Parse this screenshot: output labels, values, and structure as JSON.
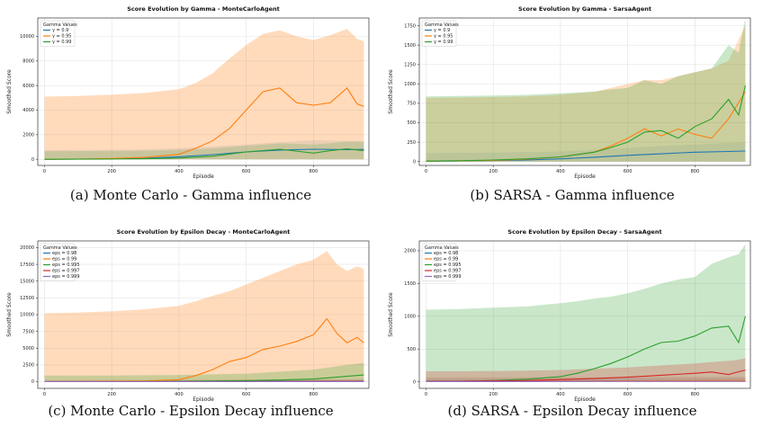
{
  "figure": {
    "captions": [
      "(a) Monte Carlo - Gamma influence",
      "(b) SARSA - Gamma influence",
      "(c) Monte Carlo - Epsilon Decay influence",
      "(d) SARSA - Epsilon Decay influence"
    ]
  },
  "chart_data": [
    {
      "type": "line",
      "title": "Score Evolution by Gamma - MonteCarloAgent",
      "xlabel": "Episode",
      "ylabel": "Smoothed Score",
      "xlim": [
        -20,
        965
      ],
      "ylim": [
        -500,
        11500
      ],
      "xticks": [
        0,
        200,
        400,
        600,
        800
      ],
      "yticks": [
        0,
        2000,
        4000,
        6000,
        8000,
        10000
      ],
      "legend_title": "Gamma Values",
      "legend_position": "top-left",
      "grid": true,
      "series": [
        {
          "name": "γ = 0.9",
          "color": "#1f77b4",
          "x": [
            0,
            100,
            200,
            300,
            400,
            500,
            600,
            700,
            800,
            900,
            950
          ],
          "values": [
            0,
            10,
            40,
            80,
            200,
            380,
            600,
            750,
            820,
            780,
            800
          ],
          "band_lower": [
            0,
            0,
            0,
            0,
            0,
            0,
            0,
            0,
            0,
            0,
            0
          ],
          "band_upper": [
            750,
            760,
            780,
            820,
            900,
            1050,
            1200,
            1400,
            1550,
            1500,
            1500
          ],
          "band_opacity": 0.12
        },
        {
          "name": "γ = 0.95",
          "color": "#ff7f0e",
          "x": [
            0,
            100,
            200,
            300,
            400,
            450,
            500,
            550,
            600,
            650,
            700,
            750,
            800,
            850,
            900,
            930,
            950
          ],
          "values": [
            0,
            20,
            60,
            150,
            400,
            900,
            1500,
            2500,
            4000,
            5500,
            5800,
            4600,
            4400,
            4600,
            5800,
            4500,
            4300
          ],
          "band_lower": [
            0,
            0,
            0,
            0,
            0,
            0,
            0,
            0,
            0,
            0,
            0,
            0,
            0,
            0,
            0,
            0,
            0
          ],
          "band_upper": [
            5100,
            5150,
            5250,
            5400,
            5700,
            6200,
            7000,
            8200,
            9300,
            10200,
            10500,
            10000,
            9700,
            10100,
            10600,
            9800,
            9600
          ],
          "band_opacity": 0.28
        },
        {
          "name": "γ = 0.99",
          "color": "#2ca02c",
          "x": [
            0,
            100,
            200,
            300,
            400,
            500,
            600,
            700,
            800,
            850,
            900,
            950
          ],
          "values": [
            0,
            5,
            20,
            40,
            100,
            250,
            600,
            820,
            500,
            700,
            850,
            700
          ],
          "band_lower": [
            0,
            0,
            0,
            0,
            0,
            0,
            0,
            0,
            0,
            0,
            0,
            0
          ],
          "band_upper": [
            650,
            660,
            680,
            700,
            760,
            880,
            1100,
            1300,
            1200,
            1300,
            1450,
            1400
          ],
          "band_opacity": 0.18
        }
      ]
    },
    {
      "type": "line",
      "title": "Score Evolution by Gamma - SarsaAgent",
      "xlabel": "Episode",
      "ylabel": "Smoothed Score",
      "xlim": [
        -20,
        965
      ],
      "ylim": [
        -50,
        1850
      ],
      "xticks": [
        0,
        200,
        400,
        600,
        800
      ],
      "yticks": [
        0,
        250,
        500,
        750,
        1000,
        1250,
        1500,
        1750
      ],
      "legend_title": "Gamma Values",
      "legend_position": "top-left",
      "grid": true,
      "series": [
        {
          "name": "γ = 0.9",
          "color": "#1f77b4",
          "x": [
            0,
            100,
            200,
            300,
            400,
            500,
            600,
            700,
            800,
            900,
            950
          ],
          "values": [
            5,
            8,
            12,
            20,
            35,
            55,
            80,
            100,
            120,
            130,
            135
          ],
          "band_lower": [
            0,
            0,
            0,
            0,
            0,
            0,
            0,
            0,
            0,
            0,
            0
          ],
          "band_upper": [
            110,
            112,
            115,
            120,
            130,
            150,
            175,
            200,
            220,
            240,
            250
          ],
          "band_opacity": 0.12
        },
        {
          "name": "γ = 0.95",
          "color": "#ff7f0e",
          "x": [
            0,
            100,
            200,
            300,
            400,
            500,
            550,
            600,
            650,
            700,
            750,
            800,
            850,
            900,
            950
          ],
          "values": [
            5,
            10,
            15,
            30,
            60,
            120,
            200,
            300,
            420,
            330,
            420,
            350,
            300,
            550,
            900
          ],
          "band_lower": [
            0,
            0,
            0,
            0,
            0,
            0,
            0,
            0,
            0,
            0,
            0,
            0,
            0,
            0,
            0
          ],
          "band_upper": [
            820,
            825,
            830,
            840,
            860,
            900,
            950,
            1000,
            1050,
            1050,
            1100,
            1150,
            1200,
            1300,
            1750
          ],
          "band_opacity": 0.25
        },
        {
          "name": "γ = 0.99",
          "color": "#2ca02c",
          "x": [
            0,
            100,
            200,
            300,
            400,
            500,
            550,
            600,
            650,
            700,
            750,
            800,
            850,
            900,
            930,
            950
          ],
          "values": [
            5,
            10,
            20,
            35,
            60,
            120,
            180,
            250,
            380,
            400,
            300,
            450,
            550,
            800,
            600,
            980
          ],
          "band_lower": [
            0,
            0,
            0,
            0,
            0,
            0,
            0,
            0,
            0,
            0,
            0,
            0,
            0,
            0,
            0,
            0
          ],
          "band_upper": [
            840,
            845,
            850,
            860,
            880,
            900,
            930,
            950,
            1050,
            1000,
            1100,
            1150,
            1200,
            1500,
            1400,
            1850
          ],
          "band_opacity": 0.25
        }
      ]
    },
    {
      "type": "line",
      "title": "Score Evolution by Epsilon Decay - MonteCarloAgent",
      "xlabel": "Episode",
      "ylabel": "Smoothed Score",
      "xlim": [
        -20,
        965
      ],
      "ylim": [
        -1000,
        21000
      ],
      "xticks": [
        0,
        200,
        400,
        600,
        800
      ],
      "yticks": [
        0,
        2500,
        5000,
        7500,
        10000,
        12500,
        15000,
        17500,
        20000
      ],
      "legend_title": "Gamma Values",
      "legend_position": "top-left",
      "grid": true,
      "series": [
        {
          "name": "eps = 0.98",
          "color": "#1f77b4",
          "x": [
            0,
            300,
            600,
            950
          ],
          "values": [
            0,
            10,
            30,
            50
          ],
          "band_lower": [
            0,
            0,
            0,
            0
          ],
          "band_upper": [
            200,
            220,
            300,
            400
          ],
          "band_opacity": 0.12
        },
        {
          "name": "eps = 0.99",
          "color": "#ff7f0e",
          "x": [
            0,
            100,
            200,
            300,
            400,
            450,
            500,
            550,
            600,
            650,
            700,
            750,
            800,
            840,
            870,
            900,
            930,
            950
          ],
          "values": [
            0,
            20,
            50,
            100,
            300,
            900,
            1800,
            3000,
            3600,
            4800,
            5300,
            6000,
            7000,
            9400,
            7200,
            5800,
            6600,
            5800
          ],
          "band_lower": [
            0,
            0,
            0,
            0,
            0,
            0,
            0,
            0,
            0,
            0,
            0,
            0,
            0,
            0,
            0,
            0,
            0,
            0
          ],
          "band_upper": [
            10200,
            10300,
            10500,
            10800,
            11300,
            12000,
            12800,
            13500,
            14500,
            15500,
            16500,
            17500,
            18200,
            19500,
            17500,
            16500,
            17200,
            16800
          ],
          "band_opacity": 0.28
        },
        {
          "name": "eps = 0.995",
          "color": "#2ca02c",
          "x": [
            0,
            200,
            400,
            600,
            700,
            800,
            900,
            950
          ],
          "values": [
            0,
            10,
            50,
            150,
            250,
            400,
            800,
            1000
          ],
          "band_lower": [
            0,
            0,
            0,
            0,
            0,
            0,
            0,
            0
          ],
          "band_upper": [
            900,
            920,
            1000,
            1200,
            1500,
            1800,
            2500,
            2800
          ],
          "band_opacity": 0.25
        },
        {
          "name": "eps = 0.997",
          "color": "#d62728",
          "x": [
            0,
            300,
            600,
            950
          ],
          "values": [
            0,
            10,
            20,
            40
          ],
          "band_lower": [
            0,
            0,
            0,
            0
          ],
          "band_upper": [
            250,
            260,
            300,
            350
          ],
          "band_opacity": 0.12
        },
        {
          "name": "eps = 0.999",
          "color": "#9467bd",
          "x": [
            0,
            300,
            600,
            950
          ],
          "values": [
            0,
            5,
            10,
            20
          ],
          "band_lower": [
            0,
            0,
            0,
            0
          ],
          "band_upper": [
            150,
            160,
            180,
            200
          ],
          "band_opacity": 0.12
        }
      ]
    },
    {
      "type": "line",
      "title": "Score Evolution by Epsilon Decay - SarsaAgent",
      "xlabel": "Episode",
      "ylabel": "Smoothed Score",
      "xlim": [
        -20,
        965
      ],
      "ylim": [
        -100,
        2150
      ],
      "xticks": [
        0,
        200,
        400,
        600,
        800
      ],
      "yticks": [
        0,
        500,
        1000,
        1500,
        2000
      ],
      "legend_title": "Gamma Values",
      "legend_position": "top-left",
      "grid": true,
      "series": [
        {
          "name": "eps = 0.98",
          "color": "#1f77b4",
          "x": [
            0,
            300,
            600,
            950
          ],
          "values": [
            5,
            8,
            12,
            15
          ],
          "band_lower": [
            0,
            0,
            0,
            0
          ],
          "band_upper": [
            60,
            62,
            65,
            70
          ],
          "band_opacity": 0.12
        },
        {
          "name": "eps = 0.99",
          "color": "#ff7f0e",
          "x": [
            0,
            300,
            600,
            950
          ],
          "values": [
            5,
            10,
            15,
            20
          ],
          "band_lower": [
            0,
            0,
            0,
            0
          ],
          "band_upper": [
            70,
            72,
            75,
            80
          ],
          "band_opacity": 0.12
        },
        {
          "name": "eps = 0.995",
          "color": "#2ca02c",
          "x": [
            0,
            100,
            200,
            300,
            400,
            450,
            500,
            550,
            600,
            650,
            700,
            750,
            800,
            850,
            900,
            930,
            950
          ],
          "values": [
            5,
            10,
            20,
            40,
            80,
            130,
            200,
            280,
            380,
            500,
            600,
            620,
            700,
            820,
            850,
            600,
            1000
          ],
          "band_lower": [
            0,
            0,
            0,
            0,
            0,
            0,
            0,
            0,
            0,
            0,
            0,
            0,
            0,
            0,
            0,
            0,
            0
          ],
          "band_upper": [
            1100,
            1110,
            1130,
            1150,
            1200,
            1230,
            1270,
            1300,
            1350,
            1420,
            1500,
            1560,
            1600,
            1800,
            1900,
            1950,
            2100
          ],
          "band_opacity": 0.25
        },
        {
          "name": "eps = 0.997",
          "color": "#d62728",
          "x": [
            0,
            100,
            200,
            300,
            400,
            500,
            600,
            700,
            800,
            850,
            900,
            920,
            950
          ],
          "values": [
            5,
            10,
            15,
            20,
            35,
            50,
            70,
            100,
            130,
            150,
            110,
            140,
            180
          ],
          "band_lower": [
            0,
            0,
            0,
            0,
            0,
            0,
            0,
            0,
            0,
            0,
            0,
            0,
            0
          ],
          "band_upper": [
            160,
            162,
            165,
            170,
            180,
            200,
            220,
            250,
            280,
            300,
            320,
            330,
            360
          ],
          "band_opacity": 0.25
        },
        {
          "name": "eps = 0.999",
          "color": "#9467bd",
          "x": [
            0,
            300,
            600,
            950
          ],
          "values": [
            3,
            5,
            8,
            10
          ],
          "band_lower": [
            0,
            0,
            0,
            0
          ],
          "band_upper": [
            40,
            42,
            45,
            50
          ],
          "band_opacity": 0.12
        }
      ]
    }
  ]
}
